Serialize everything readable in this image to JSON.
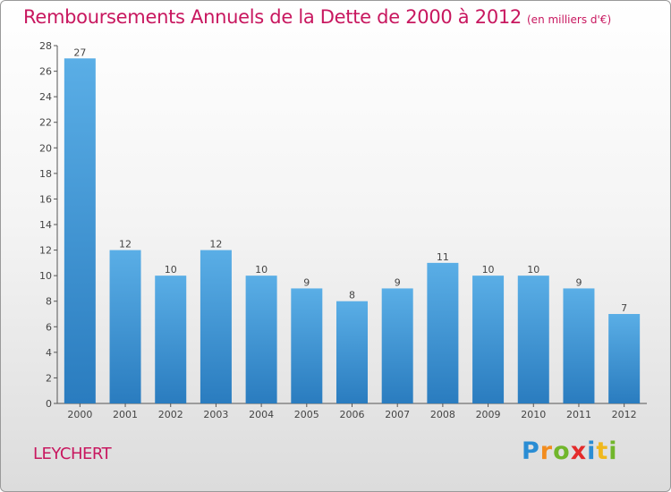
{
  "header": {
    "title": "Remboursements Annuels de la Dette de 2000 à 2012",
    "subtitle": "(en milliers d'€)"
  },
  "footer": {
    "commune": "LEYCHERT",
    "brand_letters": [
      {
        "ch": "P",
        "color": "#2a8dd4"
      },
      {
        "ch": "r",
        "color": "#f28c1e"
      },
      {
        "ch": "o",
        "color": "#71b62b"
      },
      {
        "ch": "x",
        "color": "#e42b2b"
      },
      {
        "ch": "i",
        "color": "#2a8dd4"
      },
      {
        "ch": "t",
        "color": "#f0b81d"
      },
      {
        "ch": "i",
        "color": "#71b62b"
      }
    ]
  },
  "colors": {
    "bar_top": "#5aaee6",
    "bar_bottom": "#2a7cbf",
    "title": "#c8175f",
    "axis": "#555555"
  },
  "chart_data": {
    "type": "bar",
    "title": "Remboursements Annuels de la Dette de 2000 à 2012",
    "subtitle": "(en milliers d'€)",
    "categories": [
      "2000",
      "2001",
      "2002",
      "2003",
      "2004",
      "2005",
      "2006",
      "2007",
      "2008",
      "2009",
      "2010",
      "2011",
      "2012"
    ],
    "values": [
      27,
      12,
      10,
      12,
      10,
      9,
      8,
      9,
      11,
      10,
      10,
      9,
      7
    ],
    "xlabel": "",
    "ylabel": "",
    "ylim": [
      0,
      28
    ],
    "yticks": [
      0,
      2,
      4,
      6,
      8,
      10,
      12,
      14,
      16,
      18,
      20,
      22,
      24,
      26,
      28
    ],
    "grid": false,
    "legend": "none"
  }
}
